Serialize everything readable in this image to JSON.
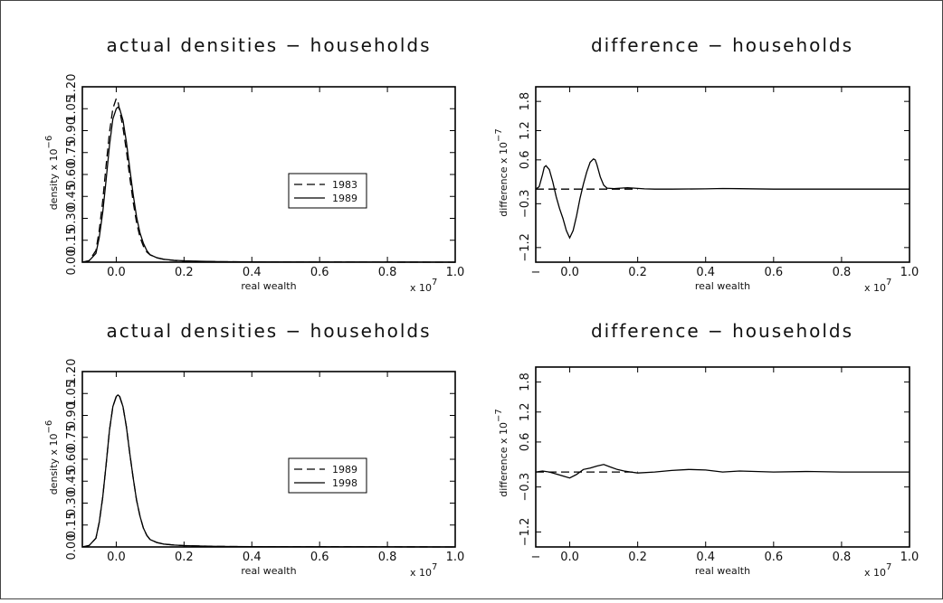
{
  "chart_data": [
    {
      "type": "line",
      "title": "actual densities − households",
      "xlabel": "real wealth",
      "ylabel": "density",
      "x_multiplier_label": "x 10",
      "x_multiplier_exp": "7",
      "y_multiplier_label": "x 10",
      "y_multiplier_exp": "−6",
      "xlim": [
        -0.1,
        1.0
      ],
      "ylim": [
        0.0,
        1.2
      ],
      "xticks": [
        "0.0",
        "0.2",
        "0.4",
        "0.6",
        "0.8",
        "1.0"
      ],
      "yticks": [
        "0.00",
        "0.15",
        "0.30",
        "0.45",
        "0.60",
        "0.75",
        "0.90",
        "1.05",
        "1.20"
      ],
      "legend_position": "center-right",
      "series": [
        {
          "name": "1983",
          "style": "dashed",
          "x": [
            -0.1,
            -0.08,
            -0.06,
            -0.05,
            -0.04,
            -0.03,
            -0.02,
            -0.01,
            0.0,
            0.005,
            0.01,
            0.02,
            0.03,
            0.04,
            0.05,
            0.06,
            0.07,
            0.08,
            0.09,
            0.1,
            0.12,
            0.14,
            0.17,
            0.2,
            0.25,
            0.3,
            0.4,
            0.5,
            0.6,
            0.8,
            1.0
          ],
          "y": [
            0.0,
            0.01,
            0.08,
            0.22,
            0.42,
            0.66,
            0.89,
            1.05,
            1.12,
            1.1,
            1.04,
            0.92,
            0.76,
            0.58,
            0.41,
            0.27,
            0.17,
            0.11,
            0.07,
            0.05,
            0.03,
            0.02,
            0.012,
            0.008,
            0.005,
            0.003,
            0.002,
            0.001,
            0.001,
            0.0005,
            0.0
          ]
        },
        {
          "name": "1989",
          "style": "solid",
          "x": [
            -0.1,
            -0.08,
            -0.06,
            -0.05,
            -0.04,
            -0.03,
            -0.02,
            -0.01,
            0.0,
            0.005,
            0.01,
            0.02,
            0.03,
            0.04,
            0.05,
            0.06,
            0.07,
            0.08,
            0.09,
            0.1,
            0.12,
            0.14,
            0.17,
            0.2,
            0.25,
            0.3,
            0.4,
            0.5,
            0.6,
            0.8,
            1.0
          ],
          "y": [
            0.0,
            0.01,
            0.06,
            0.17,
            0.34,
            0.56,
            0.8,
            0.98,
            1.05,
            1.06,
            1.05,
            0.97,
            0.82,
            0.64,
            0.46,
            0.31,
            0.2,
            0.13,
            0.08,
            0.05,
            0.03,
            0.02,
            0.013,
            0.009,
            0.006,
            0.004,
            0.002,
            0.001,
            0.001,
            0.0005,
            0.0
          ]
        }
      ]
    },
    {
      "type": "line",
      "title": "difference − households",
      "xlabel": "real wealth",
      "ylabel": "difference",
      "x_multiplier_label": "x 10",
      "x_multiplier_exp": "7",
      "y_multiplier_label": "x 10",
      "y_multiplier_exp": "−7",
      "xlim": [
        -0.1,
        1.0
      ],
      "ylim": [
        -1.5,
        2.1
      ],
      "xticks": [
        "−",
        "0.0",
        "0.2",
        "0.4",
        "0.6",
        "0.8",
        "1.0"
      ],
      "yticks": [
        "−1.2",
        "−0.3",
        "0.6",
        "1.2",
        "1.8"
      ],
      "series": [
        {
          "name": "difference",
          "style": "solid",
          "x": [
            -0.1,
            -0.09,
            -0.08,
            -0.075,
            -0.07,
            -0.06,
            -0.05,
            -0.04,
            -0.03,
            -0.02,
            -0.01,
            0.0,
            0.01,
            0.02,
            0.03,
            0.04,
            0.05,
            0.06,
            0.07,
            0.075,
            0.08,
            0.09,
            0.1,
            0.11,
            0.13,
            0.15,
            0.17,
            0.19,
            0.22,
            0.25,
            0.3,
            0.4,
            0.45,
            0.5,
            0.6,
            0.8,
            1.0
          ],
          "y": [
            0.0,
            0.05,
            0.3,
            0.45,
            0.48,
            0.4,
            0.15,
            -0.15,
            -0.4,
            -0.6,
            -0.85,
            -1.0,
            -0.85,
            -0.55,
            -0.2,
            0.1,
            0.35,
            0.55,
            0.62,
            0.6,
            0.5,
            0.25,
            0.08,
            0.02,
            0.01,
            0.02,
            0.03,
            0.02,
            0.005,
            0.0,
            0.0,
            0.005,
            0.012,
            0.008,
            0.0,
            0.0,
            0.0
          ]
        },
        {
          "name": "zero line",
          "style": "dashed",
          "x": [
            -0.1,
            0.2
          ],
          "y": [
            0.0,
            0.0
          ]
        }
      ]
    },
    {
      "type": "line",
      "title": "actual densities − households",
      "xlabel": "real wealth",
      "ylabel": "density",
      "x_multiplier_label": "x 10",
      "x_multiplier_exp": "7",
      "y_multiplier_label": "x 10",
      "y_multiplier_exp": "−6",
      "xlim": [
        -0.1,
        1.0
      ],
      "ylim": [
        0.0,
        1.2
      ],
      "xticks": [
        "0.0",
        "0.2",
        "0.4",
        "0.6",
        "0.8",
        "1.0"
      ],
      "yticks": [
        "0.00",
        "0.15",
        "0.30",
        "0.45",
        "0.60",
        "0.75",
        "0.90",
        "1.05",
        "1.20"
      ],
      "legend_position": "center-right",
      "series": [
        {
          "name": "1989",
          "style": "dashed",
          "x": [
            -0.1,
            -0.08,
            -0.06,
            -0.05,
            -0.04,
            -0.03,
            -0.02,
            -0.01,
            0.0,
            0.005,
            0.01,
            0.02,
            0.03,
            0.04,
            0.05,
            0.06,
            0.07,
            0.08,
            0.09,
            0.1,
            0.12,
            0.14,
            0.17,
            0.2,
            0.25,
            0.3,
            0.4,
            0.5,
            0.6,
            0.8,
            1.0
          ],
          "y": [
            0.0,
            0.01,
            0.06,
            0.17,
            0.34,
            0.56,
            0.8,
            0.96,
            1.03,
            1.04,
            1.03,
            0.96,
            0.82,
            0.64,
            0.47,
            0.32,
            0.21,
            0.13,
            0.08,
            0.05,
            0.03,
            0.02,
            0.013,
            0.009,
            0.006,
            0.004,
            0.002,
            0.001,
            0.001,
            0.0005,
            0.0
          ]
        },
        {
          "name": "1998",
          "style": "solid",
          "x": [
            -0.1,
            -0.08,
            -0.06,
            -0.05,
            -0.04,
            -0.03,
            -0.02,
            -0.01,
            0.0,
            0.005,
            0.01,
            0.02,
            0.03,
            0.04,
            0.05,
            0.06,
            0.07,
            0.08,
            0.09,
            0.1,
            0.12,
            0.14,
            0.17,
            0.2,
            0.25,
            0.3,
            0.4,
            0.5,
            0.6,
            0.8,
            1.0
          ],
          "y": [
            0.0,
            0.01,
            0.06,
            0.17,
            0.34,
            0.56,
            0.8,
            0.96,
            1.03,
            1.04,
            1.03,
            0.96,
            0.82,
            0.64,
            0.47,
            0.32,
            0.21,
            0.13,
            0.08,
            0.05,
            0.03,
            0.02,
            0.013,
            0.009,
            0.006,
            0.004,
            0.002,
            0.001,
            0.001,
            0.0005,
            0.0
          ]
        }
      ]
    },
    {
      "type": "line",
      "title": "difference − households",
      "xlabel": "real wealth",
      "ylabel": "difference",
      "x_multiplier_label": "x 10",
      "x_multiplier_exp": "7",
      "y_multiplier_label": "x 10",
      "y_multiplier_exp": "−7",
      "xlim": [
        -0.1,
        1.0
      ],
      "ylim": [
        -1.5,
        2.1
      ],
      "xticks": [
        "−",
        "0.0",
        "0.2",
        "0.4",
        "0.6",
        "0.8",
        "1.0"
      ],
      "yticks": [
        "−1.2",
        "−0.3",
        "0.6",
        "1.2",
        "1.8"
      ],
      "series": [
        {
          "name": "difference",
          "style": "solid",
          "x": [
            -0.1,
            -0.08,
            -0.06,
            -0.04,
            -0.02,
            0.0,
            0.02,
            0.04,
            0.06,
            0.08,
            0.1,
            0.12,
            0.14,
            0.16,
            0.18,
            0.2,
            0.25,
            0.3,
            0.35,
            0.4,
            0.45,
            0.5,
            0.6,
            0.7,
            0.8,
            1.0
          ],
          "y": [
            0.0,
            0.02,
            0.0,
            -0.04,
            -0.08,
            -0.12,
            -0.05,
            0.05,
            0.08,
            0.12,
            0.15,
            0.1,
            0.05,
            0.02,
            0.0,
            -0.02,
            0.0,
            0.03,
            0.05,
            0.04,
            0.0,
            0.02,
            0.0,
            0.01,
            0.0,
            0.0
          ]
        },
        {
          "name": "zero line",
          "style": "dashed",
          "x": [
            -0.1,
            0.2
          ],
          "y": [
            0.0,
            0.0
          ]
        }
      ]
    }
  ]
}
